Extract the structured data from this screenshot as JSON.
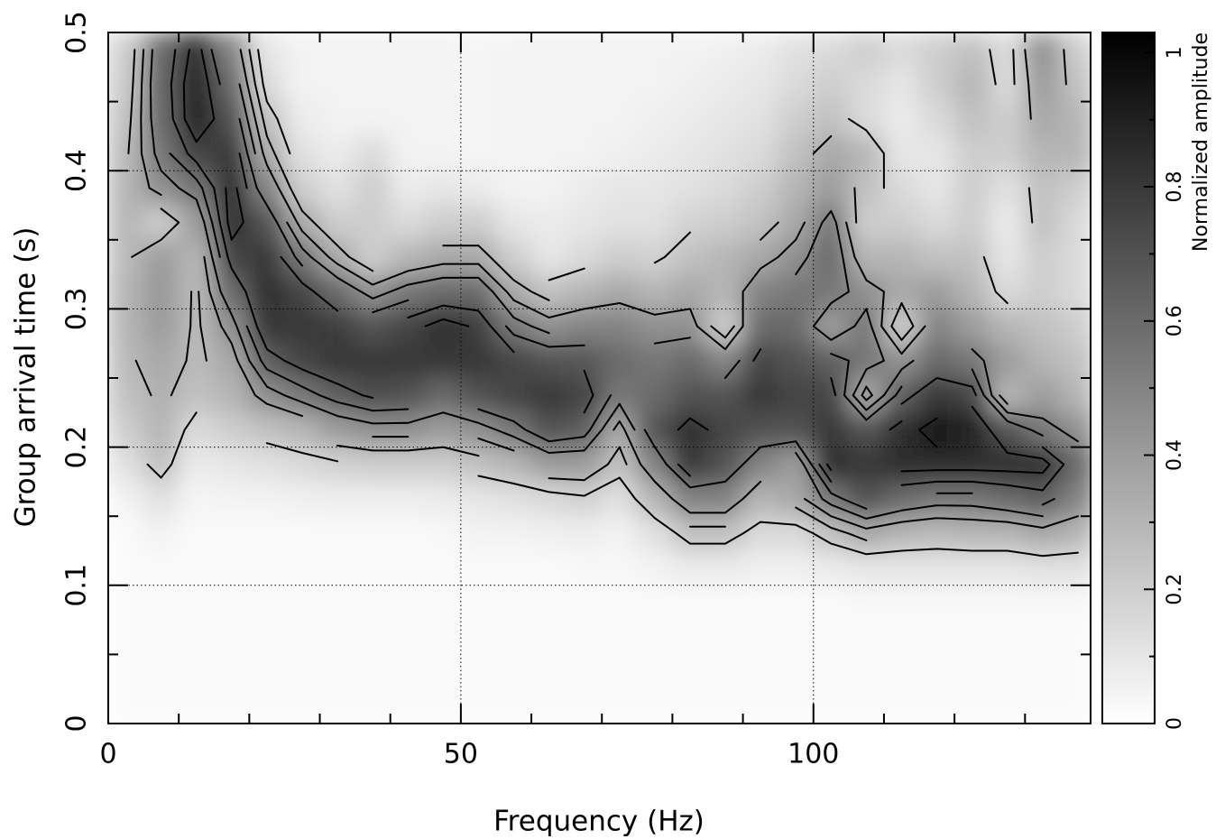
{
  "chart_data": {
    "type": "heatmap",
    "xlabel": "Frequency (Hz)",
    "ylabel": "Group arrival time (s)",
    "colorbar_label": "Normalized amplitude",
    "xlim": [
      0,
      139.3
    ],
    "ylim": [
      0,
      0.5
    ],
    "xticks": [
      0,
      50,
      100
    ],
    "yticks": [
      0,
      0.1,
      0.2,
      0.3,
      0.4,
      0.5
    ],
    "x_minor_ticks": [
      10,
      20,
      30,
      40,
      60,
      70,
      80,
      90,
      110,
      120,
      130
    ],
    "y_minor_ticks": [
      0.05,
      0.15,
      0.25,
      0.35,
      0.45
    ],
    "grid_x": [
      50,
      100
    ],
    "grid_y": [
      0.1,
      0.2,
      0.3,
      0.4
    ],
    "zlim": [
      0,
      1.03
    ],
    "zticks": [
      0,
      0.2,
      0.4,
      0.6,
      0.8,
      1
    ],
    "z_minor_ticks": [
      0.1,
      0.3,
      0.5,
      0.7,
      0.9
    ],
    "colormap": [
      "#ffffff",
      "#000000"
    ],
    "contour_color": "#000000",
    "contour_levels": [
      0.2,
      0.3,
      0.4,
      0.5,
      0.6,
      0.7,
      0.8,
      0.9
    ],
    "x": [
      2.5,
      7.5,
      12.5,
      17.5,
      22.5,
      27.5,
      32.5,
      37.5,
      42.5,
      47.5,
      52.5,
      57.5,
      62.5,
      67.5,
      72.5,
      77.5,
      82.5,
      87.5,
      92.5,
      97.5,
      102.5,
      107.5,
      112.5,
      117.5,
      122.5,
      127.5,
      132.5,
      137.5
    ],
    "y": [
      0.0125,
      0.0375,
      0.0625,
      0.0875,
      0.1125,
      0.1375,
      0.1625,
      0.1875,
      0.2125,
      0.2375,
      0.2625,
      0.2875,
      0.3125,
      0.3375,
      0.3625,
      0.3875,
      0.4125,
      0.4375,
      0.4625,
      0.4875
    ],
    "z": [
      [
        0.02,
        0.02,
        0.02,
        0.02,
        0.02,
        0.02,
        0.05,
        0.12,
        0.2,
        0.25,
        0.28,
        0.3,
        0.3,
        0.28,
        0.3,
        0.3,
        0.28,
        0.25,
        0.22,
        0.2
      ],
      [
        0.02,
        0.02,
        0.02,
        0.02,
        0.02,
        0.05,
        0.12,
        0.25,
        0.3,
        0.32,
        0.35,
        0.4,
        0.42,
        0.4,
        0.2,
        0.45,
        0.55,
        0.6,
        0.62,
        0.6
      ],
      [
        0.02,
        0.02,
        0.02,
        0.02,
        0.02,
        0.02,
        0.04,
        0.08,
        0.15,
        0.25,
        0.28,
        0.28,
        0.28,
        0.3,
        0.4,
        0.55,
        0.75,
        0.9,
        0.9,
        0.85
      ],
      [
        0.02,
        0.02,
        0.02,
        0.02,
        0.02,
        0.02,
        0.05,
        0.1,
        0.2,
        0.3,
        0.35,
        0.45,
        0.6,
        0.75,
        0.85,
        0.85,
        0.8,
        0.7,
        0.6,
        0.5
      ],
      [
        0.02,
        0.02,
        0.02,
        0.02,
        0.02,
        0.02,
        0.05,
        0.12,
        0.25,
        0.45,
        0.65,
        0.8,
        0.85,
        0.8,
        0.7,
        0.5,
        0.35,
        0.25,
        0.15,
        0.1
      ],
      [
        0.02,
        0.02,
        0.02,
        0.02,
        0.02,
        0.02,
        0.06,
        0.15,
        0.3,
        0.55,
        0.75,
        0.8,
        0.75,
        0.55,
        0.35,
        0.2,
        0.12,
        0.08,
        0.05,
        0.05
      ],
      [
        0.02,
        0.02,
        0.02,
        0.02,
        0.02,
        0.02,
        0.07,
        0.18,
        0.4,
        0.65,
        0.8,
        0.78,
        0.6,
        0.35,
        0.2,
        0.12,
        0.08,
        0.05,
        0.05,
        0.05
      ],
      [
        0.02,
        0.02,
        0.02,
        0.02,
        0.02,
        0.02,
        0.07,
        0.2,
        0.45,
        0.72,
        0.8,
        0.7,
        0.45,
        0.2,
        0.2,
        0.2,
        0.15,
        0.05,
        0.05,
        0.05
      ],
      [
        0.02,
        0.02,
        0.02,
        0.02,
        0.02,
        0.02,
        0.07,
        0.2,
        0.45,
        0.7,
        0.8,
        0.75,
        0.55,
        0.3,
        0.15,
        0.08,
        0.05,
        0.05,
        0.05,
        0.05
      ],
      [
        0.02,
        0.02,
        0.02,
        0.02,
        0.02,
        0.03,
        0.08,
        0.2,
        0.4,
        0.6,
        0.8,
        0.85,
        0.6,
        0.35,
        0.2,
        0.1,
        0.05,
        0.05,
        0.05,
        0.05
      ],
      [
        0.02,
        0.02,
        0.02,
        0.02,
        0.02,
        0.05,
        0.1,
        0.25,
        0.45,
        0.7,
        0.8,
        0.78,
        0.6,
        0.35,
        0.2,
        0.08,
        0.04,
        0.04,
        0.04,
        0.04
      ],
      [
        0.02,
        0.02,
        0.02,
        0.02,
        0.02,
        0.05,
        0.12,
        0.3,
        0.55,
        0.75,
        0.75,
        0.55,
        0.35,
        0.2,
        0.1,
        0.05,
        0.05,
        0.05,
        0.05,
        0.05
      ],
      [
        0.02,
        0.02,
        0.02,
        0.02,
        0.02,
        0.06,
        0.15,
        0.4,
        0.7,
        0.8,
        0.7,
        0.45,
        0.25,
        0.1,
        0.08,
        0.05,
        0.05,
        0.05,
        0.05,
        0.05
      ],
      [
        0.02,
        0.02,
        0.02,
        0.02,
        0.03,
        0.07,
        0.18,
        0.4,
        0.65,
        0.75,
        0.68,
        0.5,
        0.3,
        0.15,
        0.1,
        0.08,
        0.05,
        0.05,
        0.05,
        0.05
      ],
      [
        0.02,
        0.02,
        0.02,
        0.02,
        0.03,
        0.05,
        0.12,
        0.25,
        0.35,
        0.55,
        0.6,
        0.5,
        0.35,
        0.2,
        0.12,
        0.1,
        0.06,
        0.05,
        0.05,
        0.05
      ],
      [
        0.02,
        0.02,
        0.02,
        0.02,
        0.05,
        0.12,
        0.3,
        0.5,
        0.7,
        0.6,
        0.55,
        0.45,
        0.3,
        0.18,
        0.12,
        0.1,
        0.08,
        0.06,
        0.05,
        0.05
      ],
      [
        0.02,
        0.02,
        0.02,
        0.02,
        0.08,
        0.25,
        0.5,
        0.8,
        0.85,
        0.7,
        0.6,
        0.45,
        0.35,
        0.25,
        0.18,
        0.12,
        0.1,
        0.08,
        0.06,
        0.05
      ],
      [
        0.02,
        0.02,
        0.02,
        0.02,
        0.08,
        0.25,
        0.5,
        0.7,
        0.75,
        0.7,
        0.5,
        0.2,
        0.3,
        0.3,
        0.2,
        0.15,
        0.12,
        0.1,
        0.08,
        0.06
      ],
      [
        0.02,
        0.02,
        0.02,
        0.02,
        0.06,
        0.15,
        0.3,
        0.5,
        0.7,
        0.8,
        0.75,
        0.6,
        0.5,
        0.35,
        0.25,
        0.2,
        0.15,
        0.12,
        0.1,
        0.08
      ],
      [
        0.02,
        0.02,
        0.02,
        0.02,
        0.06,
        0.15,
        0.35,
        0.4,
        0.7,
        0.75,
        0.7,
        0.6,
        0.55,
        0.45,
        0.35,
        0.3,
        0.25,
        0.2,
        0.15,
        0.12
      ],
      [
        0.02,
        0.02,
        0.02,
        0.02,
        0.08,
        0.25,
        0.55,
        0.85,
        0.8,
        0.75,
        0.65,
        0.4,
        0.55,
        0.6,
        0.55,
        0.4,
        0.35,
        0.25,
        0.2,
        0.15
      ],
      [
        0.02,
        0.02,
        0.02,
        0.03,
        0.1,
        0.35,
        0.7,
        0.8,
        0.7,
        0.35,
        0.55,
        0.55,
        0.45,
        0.3,
        0.2,
        0.25,
        0.3,
        0.15,
        0.15,
        0.2
      ],
      [
        0.02,
        0.02,
        0.02,
        0.03,
        0.1,
        0.3,
        0.6,
        0.85,
        0.85,
        0.65,
        0.45,
        0.2,
        0.35,
        0.3,
        0.2,
        0.15,
        0.1,
        0.08,
        0.1,
        0.15
      ],
      [
        0.02,
        0.02,
        0.02,
        0.03,
        0.1,
        0.28,
        0.55,
        0.85,
        0.95,
        0.8,
        0.6,
        0.5,
        0.4,
        0.25,
        0.15,
        0.1,
        0.1,
        0.15,
        0.2,
        0.2
      ],
      [
        0.02,
        0.02,
        0.02,
        0.03,
        0.1,
        0.3,
        0.55,
        0.85,
        0.9,
        0.75,
        0.55,
        0.4,
        0.3,
        0.25,
        0.2,
        0.2,
        0.2,
        0.25,
        0.3,
        0.25
      ],
      [
        0.02,
        0.02,
        0.02,
        0.03,
        0.1,
        0.3,
        0.6,
        0.85,
        0.7,
        0.3,
        0.4,
        0.3,
        0.15,
        0.1,
        0.08,
        0.12,
        0.2,
        0.2,
        0.15,
        0.15
      ],
      [
        0.02,
        0.02,
        0.02,
        0.03,
        0.12,
        0.35,
        0.65,
        0.85,
        0.55,
        0.4,
        0.3,
        0.25,
        0.2,
        0.2,
        0.25,
        0.25,
        0.3,
        0.35,
        0.4,
        0.45
      ],
      [
        0.02,
        0.02,
        0.02,
        0.03,
        0.12,
        0.3,
        0.5,
        0.6,
        0.45,
        0.3,
        0.25,
        0.2,
        0.15,
        0.15,
        0.15,
        0.2,
        0.3,
        0.3,
        0.25,
        0.2
      ]
    ]
  }
}
